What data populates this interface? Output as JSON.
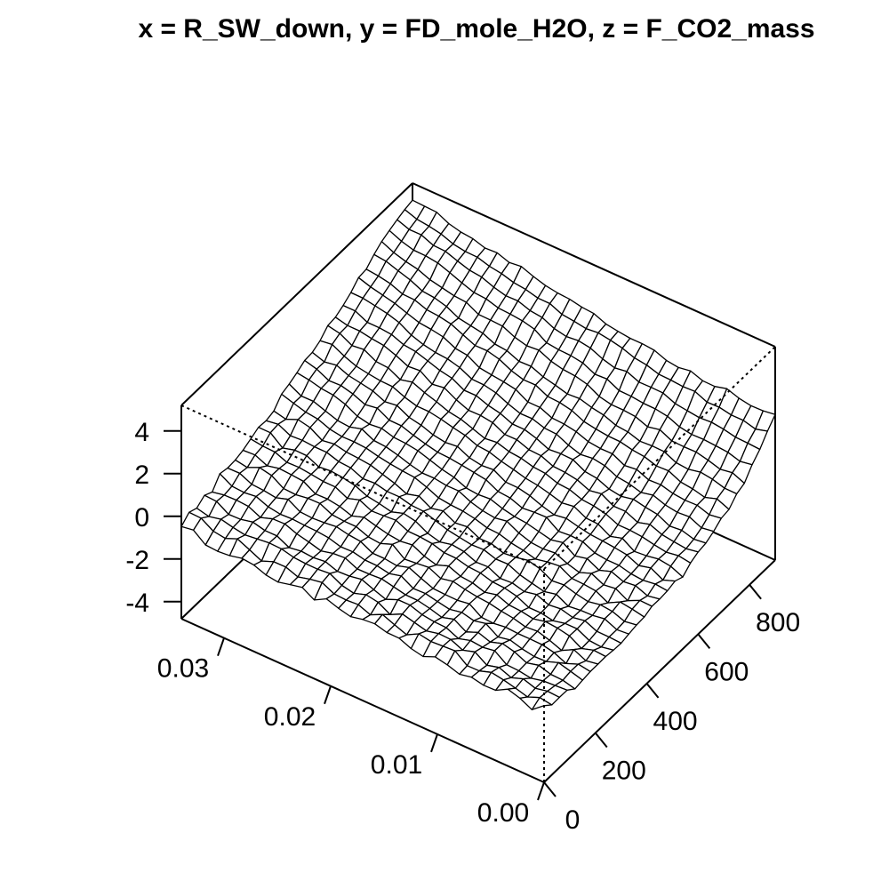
{
  "chart_data": {
    "type": "surface",
    "title": "x = R_SW_down, y = FD_mole_H2O, z = F_CO2_mass",
    "xlabel": "",
    "ylabel": "",
    "zlabel": "",
    "x_ticks": [
      "0.00",
      "0.01",
      "0.02",
      "0.03"
    ],
    "y_ticks": [
      "0",
      "200",
      "400",
      "600",
      "800"
    ],
    "z_ticks": [
      "-4",
      "-2",
      "0",
      "2",
      "4"
    ],
    "xlim": [
      0.0,
      0.034
    ],
    "ylim": [
      0,
      900
    ],
    "zlim": [
      -4.8,
      5.2
    ],
    "grid": false,
    "surface_style": "wireframe, white facets with black edges",
    "x": [
      0.0,
      0.00113,
      0.00227,
      0.0034,
      0.00453,
      0.00567,
      0.0068,
      0.00793,
      0.00907,
      0.0102,
      0.01133,
      0.01247,
      0.0136,
      0.01473,
      0.01587,
      0.017,
      0.01813,
      0.01927,
      0.0204,
      0.02153,
      0.02267,
      0.0238,
      0.02493,
      0.02607,
      0.0272,
      0.02833,
      0.02947,
      0.0306,
      0.03173,
      0.03287,
      0.034
    ],
    "y": [
      0,
      30,
      60,
      90,
      120,
      150,
      180,
      210,
      240,
      270,
      300,
      330,
      360,
      390,
      420,
      450,
      480,
      510,
      540,
      570,
      600,
      630,
      660,
      690,
      720,
      750,
      780,
      810,
      840,
      870,
      900
    ],
    "z": [
      [
        -1.21,
        -1.65,
        -1.37,
        -1.2,
        -1.51,
        -1.53,
        -1.41,
        -1.52,
        -1.34,
        -1.22,
        -1.46,
        -1.34,
        -1.11,
        -1.1,
        -0.95,
        -1.0,
        -1.12,
        -0.99,
        -0.8,
        -1.11,
        -0.78,
        -0.9,
        -1.04,
        -0.96,
        -0.75,
        -0.69,
        -0.82,
        -0.87,
        -0.83,
        -0.39,
        -0.48
      ],
      [
        -1.52,
        -1.43,
        -1.66,
        -1.5,
        -1.37,
        -1.27,
        -1.46,
        -1.47,
        -1.03,
        -1.07,
        -1.1,
        -1.0,
        -1.3,
        -1.09,
        -0.86,
        -1.13,
        -0.91,
        -0.95,
        -0.92,
        -0.64,
        -0.74,
        -0.89,
        -0.68,
        -0.69,
        -0.91,
        -0.64,
        -0.38,
        -0.62,
        -0.53,
        -0.18,
        -0.16
      ],
      [
        -1.51,
        -1.48,
        -1.6,
        -1.41,
        -1.61,
        -1.39,
        -1.54,
        -1.17,
        -1.35,
        -1.1,
        -1.08,
        -1.21,
        -1.07,
        -0.93,
        -1.21,
        -0.89,
        -0.79,
        -0.98,
        -0.86,
        -0.56,
        -0.62,
        -0.61,
        -0.57,
        -0.43,
        -0.41,
        -0.48,
        -0.55,
        -0.45,
        -0.32,
        -0.45,
        -0.31
      ],
      [
        -1.52,
        -1.56,
        -1.6,
        -1.73,
        -1.64,
        -1.61,
        -1.21,
        -1.3,
        -1.24,
        -1.41,
        -1.15,
        -1.13,
        -1.05,
        -0.86,
        -0.86,
        -1.1,
        -0.9,
        -0.68,
        -0.78,
        -0.81,
        -0.61,
        -0.68,
        -0.63,
        -0.72,
        -0.43,
        -0.43,
        -0.29,
        -0.42,
        -0.44,
        -0.09,
        -0.06
      ],
      [
        -1.81,
        -1.66,
        -1.64,
        -1.47,
        -1.61,
        -1.35,
        -1.22,
        -1.4,
        -1.21,
        -1.44,
        -1.1,
        -1.27,
        -1.11,
        -0.99,
        -0.98,
        -0.86,
        -0.74,
        -0.78,
        -0.79,
        -0.53,
        -0.57,
        -0.71,
        -0.55,
        -0.42,
        -0.21,
        -0.23,
        -0.42,
        -0.16,
        -0.12,
        -0.14,
        -0.25
      ],
      [
        -1.75,
        -1.59,
        -1.44,
        -1.64,
        -1.66,
        -1.56,
        -1.4,
        -1.51,
        -1.14,
        -1.26,
        -1.13,
        -1.24,
        -1.13,
        -1.01,
        -1.03,
        -0.7,
        -0.84,
        -0.73,
        -0.72,
        -0.59,
        -0.61,
        -0.45,
        -0.39,
        -0.37,
        -0.33,
        -0.36,
        -0.27,
        -0.04,
        -0.11,
        -0.07,
        0.26
      ],
      [
        -1.69,
        -1.6,
        -1.83,
        -1.57,
        -1.45,
        -1.44,
        -1.44,
        -1.4,
        -1.48,
        -1.45,
        -1.07,
        -1.16,
        -1.15,
        -1.12,
        -0.9,
        -0.65,
        -0.82,
        -0.75,
        -0.75,
        -0.45,
        -0.39,
        -0.27,
        -0.34,
        -0.38,
        -0.34,
        -0.01,
        -0.19,
        -0.11,
        -0.07,
        0.19,
        0.18
      ],
      [
        -1.69,
        -1.79,
        -1.52,
        -1.82,
        -1.6,
        -1.43,
        -1.48,
        -1.33,
        -1.25,
        -1.14,
        -1.09,
        -1.0,
        -0.88,
        -1.0,
        -0.74,
        -0.8,
        -0.86,
        -0.42,
        -0.64,
        -0.58,
        -0.36,
        -0.36,
        -0.31,
        -0.04,
        -0.05,
        -0.14,
        -0.11,
        0.25,
        0.37,
        0.11,
        0.21
      ],
      [
        -1.68,
        -1.64,
        -1.82,
        -1.48,
        -1.37,
        -1.32,
        -1.45,
        -1.35,
        -1.31,
        -1.09,
        -1.23,
        -1.05,
        -0.99,
        -0.76,
        -0.97,
        -0.81,
        -0.54,
        -0.62,
        -0.55,
        -0.42,
        -0.27,
        -0.46,
        -0.27,
        -0.18,
        -0.2,
        0.14,
        0.19,
        0.23,
        0.1,
        0.35,
        0.32
      ],
      [
        -1.73,
        -1.84,
        -1.79,
        -1.5,
        -1.5,
        -1.63,
        -1.52,
        -1.52,
        -1.25,
        -1.12,
        -1.09,
        -0.93,
        -0.89,
        -0.75,
        -0.74,
        -0.57,
        -0.51,
        -0.5,
        -0.24,
        -0.29,
        -0.32,
        -0.06,
        -0.24,
        0.04,
        0.04,
        0.12,
        0.19,
        0.17,
        0.4,
        0.42,
        0.5
      ],
      [
        -1.75,
        -1.72,
        -1.71,
        -1.47,
        -1.57,
        -1.42,
        -1.49,
        -1.26,
        -1.38,
        -1.23,
        -1.27,
        -0.99,
        -1.02,
        -0.78,
        -0.71,
        -0.84,
        -0.69,
        -0.38,
        -0.27,
        -0.45,
        -0.32,
        -0.23,
        0.01,
        0.12,
        0.18,
        0.12,
        0.39,
        0.4,
        0.24,
        0.7,
        0.7
      ],
      [
        -1.67,
        -1.72,
        -1.47,
        -1.56,
        -1.58,
        -1.65,
        -1.34,
        -1.47,
        -1.34,
        -1.2,
        -0.95,
        -0.97,
        -0.78,
        -0.81,
        -0.72,
        -0.62,
        -0.44,
        -0.26,
        -0.23,
        -0.09,
        -0.1,
        0.03,
        -0.01,
        0.24,
        0.28,
        0.46,
        0.46,
        0.51,
        0.47,
        0.75,
        0.66
      ],
      [
        -1.59,
        -1.68,
        -1.47,
        -1.41,
        -1.52,
        -1.41,
        -1.25,
        -1.31,
        -1.0,
        -0.86,
        -0.98,
        -1.04,
        -0.85,
        -0.86,
        -0.57,
        -0.64,
        -0.34,
        -0.47,
        -0.15,
        -0.31,
        -0.07,
        0.1,
        0.28,
        0.34,
        0.38,
        0.5,
        0.41,
        0.76,
        0.88,
        0.64,
        0.77
      ],
      [
        -1.57,
        -1.45,
        -1.37,
        -1.67,
        -1.37,
        -1.31,
        -1.29,
        -0.97,
        -1.03,
        -1.15,
        -1.0,
        -0.91,
        -0.74,
        -0.71,
        -0.54,
        -0.44,
        -0.4,
        -0.33,
        -0.08,
        0.12,
        0.17,
        0.24,
        0.34,
        0.47,
        0.51,
        0.5,
        0.59,
        0.81,
        0.88,
        1.04,
        1.21
      ],
      [
        -1.41,
        -1.39,
        -1.66,
        -1.35,
        -1.43,
        -1.15,
        -1.36,
        -1.2,
        -0.96,
        -1.02,
        -0.98,
        -0.79,
        -0.49,
        -0.59,
        -0.51,
        -0.35,
        -0.09,
        -0.1,
        -0.01,
        -0.02,
        0.12,
        0.3,
        0.44,
        0.48,
        0.77,
        0.6,
        0.65,
        0.84,
        1.04,
        1.03,
        1.34
      ],
      [
        -1.42,
        -1.52,
        -1.3,
        -1.37,
        -1.15,
        -1.35,
        -1.06,
        -1.19,
        -0.82,
        -0.94,
        -0.81,
        -0.68,
        -0.62,
        -0.5,
        -0.31,
        -0.36,
        -0.3,
        -0.06,
        0.06,
        0.24,
        0.42,
        0.51,
        0.54,
        0.7,
        0.64,
        0.76,
        1.06,
        1.24,
        1.3,
        1.44,
        1.52
      ],
      [
        -1.38,
        -1.32,
        -1.4,
        -1.35,
        -1.21,
        -1.21,
        -1.14,
        -0.87,
        -0.84,
        -0.89,
        -0.49,
        -0.51,
        -0.57,
        -0.35,
        -0.3,
        -0.01,
        0.08,
        0.16,
        0.23,
        0.26,
        0.39,
        0.54,
        0.73,
        0.74,
        1.05,
        0.96,
        1.2,
        1.34,
        1.32,
        1.6,
        1.75
      ],
      [
        -1.27,
        -1.48,
        -1.17,
        -1.31,
        -1.06,
        -0.98,
        -0.92,
        -0.88,
        -0.77,
        -0.63,
        -0.72,
        -0.56,
        -0.34,
        -0.22,
        -0.21,
        0.11,
        0.06,
        0.16,
        0.44,
        0.37,
        0.47,
        0.67,
        0.78,
        1.08,
        1.0,
        1.25,
        1.36,
        1.46,
        1.69,
        1.59,
        1.78
      ],
      [
        -1.43,
        -1.18,
        -1.1,
        -1.2,
        -1.25,
        -0.89,
        -1.06,
        -0.74,
        -0.71,
        -0.42,
        -0.51,
        -0.34,
        -0.2,
        -0.12,
        0.03,
        0.16,
        0.34,
        0.39,
        0.61,
        0.72,
        0.86,
        0.96,
        0.96,
        1.12,
        1.36,
        1.38,
        1.45,
        1.55,
        1.77,
        2.06,
        1.98
      ],
      [
        -1.12,
        -1.03,
        -1.12,
        -1.03,
        -0.91,
        -0.86,
        -0.86,
        -0.61,
        -0.49,
        -0.44,
        -0.23,
        -0.19,
        0.01,
        0.06,
        0.21,
        0.27,
        0.44,
        0.37,
        0.57,
        0.77,
        0.86,
        1.07,
        1.25,
        1.48,
        1.34,
        1.64,
        1.68,
        1.98,
        1.92,
        2.23,
        2.34
      ],
      [
        -0.95,
        -1.05,
        -0.98,
        -0.9,
        -0.68,
        -0.84,
        -0.58,
        -0.59,
        -0.27,
        -0.37,
        -0.13,
        -0.03,
        0.0,
        0.24,
        0.27,
        0.48,
        0.47,
        0.77,
        0.85,
        0.84,
        1.07,
        1.38,
        1.29,
        1.67,
        1.62,
        1.87,
        2.08,
        2.15,
        2.25,
        2.25,
        2.39
      ],
      [
        -0.88,
        -0.95,
        -0.79,
        -0.85,
        -0.56,
        -0.48,
        -0.36,
        -0.48,
        -0.39,
        -0.15,
        -0.08,
        0.22,
        0.24,
        0.19,
        0.44,
        0.61,
        0.61,
        0.85,
        0.97,
        1.18,
        1.17,
        1.48,
        1.59,
        1.78,
        1.96,
        2.03,
        2.25,
        2.31,
        2.31,
        2.59,
        2.59
      ],
      [
        -0.68,
        -0.77,
        -0.51,
        -0.55,
        -0.46,
        -0.26,
        -0.39,
        -0.23,
        -0.16,
        0.1,
        0.19,
        0.11,
        0.29,
        0.56,
        0.59,
        0.77,
        0.76,
        0.96,
        1.21,
        1.33,
        1.35,
        1.63,
        1.78,
        1.83,
        1.94,
        2.13,
        2.46,
        2.63,
        2.74,
        2.84,
        2.85
      ],
      [
        -0.41,
        -0.5,
        -0.31,
        -0.33,
        -0.27,
        -0.12,
        -0.15,
        0.09,
        0.02,
        0.31,
        0.3,
        0.37,
        0.58,
        0.68,
        0.71,
        0.95,
        0.95,
        1.28,
        1.38,
        1.45,
        1.53,
        1.86,
        1.93,
        2.21,
        2.31,
        2.37,
        2.56,
        2.76,
        2.89,
        3.02,
        3.2
      ],
      [
        -0.34,
        -0.1,
        -0.29,
        -0.15,
        -0.08,
        0.19,
        0.16,
        0.34,
        0.4,
        0.53,
        0.54,
        0.61,
        0.71,
        0.97,
        1.09,
        1.12,
        1.4,
        1.39,
        1.56,
        1.84,
        1.98,
        1.97,
        2.22,
        2.47,
        2.58,
        2.63,
        2.83,
        2.85,
        3.08,
        3.19,
        3.25
      ],
      [
        0.04,
        0.05,
        0.21,
        0.29,
        0.17,
        0.22,
        0.48,
        0.5,
        0.46,
        0.64,
        0.7,
        0.92,
        1.02,
        1.18,
        1.14,
        1.3,
        1.43,
        1.67,
        1.65,
        1.89,
        1.95,
        2.2,
        2.3,
        2.4,
        2.68,
        2.84,
        2.9,
        3.16,
        3.34,
        3.53,
        3.59
      ],
      [
        0.19,
        0.43,
        0.33,
        0.5,
        0.63,
        0.62,
        0.64,
        0.91,
        0.79,
        1.01,
        1.06,
        1.06,
        1.19,
        1.5,
        1.64,
        1.69,
        1.82,
        2.08,
        2.03,
        2.18,
        2.44,
        2.47,
        2.48,
        2.79,
        2.84,
        2.96,
        3.08,
        3.31,
        3.42,
        3.59,
        3.85
      ],
      [
        0.71,
        0.61,
        0.78,
        0.83,
        0.87,
        0.85,
        0.95,
        1.19,
        1.28,
        1.29,
        1.36,
        1.37,
        1.66,
        1.63,
        1.9,
        1.99,
        2.01,
        2.08,
        2.46,
        2.6,
        2.66,
        2.69,
        2.86,
        2.9,
        3.1,
        3.32,
        3.52,
        3.6,
        3.61,
        3.77,
        4.02
      ],
      [
        1.08,
        1.12,
        1.14,
        1.26,
        1.33,
        1.29,
        1.36,
        1.44,
        1.68,
        1.69,
        1.68,
        1.92,
        1.83,
        2.0,
        2.25,
        2.34,
        2.28,
        2.4,
        2.66,
        2.73,
        2.93,
        2.91,
        3.06,
        3.28,
        3.34,
        3.52,
        3.72,
        3.74,
        3.98,
        3.98,
        4.18
      ],
      [
        1.59,
        1.43,
        1.58,
        1.58,
        1.69,
        1.67,
        1.92,
        1.89,
        1.94,
        1.96,
        2.13,
        2.21,
        2.41,
        2.53,
        2.62,
        2.56,
        2.65,
        2.72,
        2.97,
        2.97,
        3.12,
        3.19,
        3.35,
        3.44,
        3.61,
        3.62,
        3.72,
        3.93,
        4.04,
        4.11,
        4.31
      ],
      [
        2.02,
        1.94,
        1.92,
        2.02,
        2.21,
        2.06,
        2.07,
        2.28,
        2.18,
        2.26,
        2.48,
        2.53,
        2.53,
        2.6,
        2.69,
        2.92,
        2.97,
        3.08,
        3.12,
        3.21,
        3.38,
        3.59,
        3.53,
        3.72,
        3.69,
        3.87,
        3.93,
        4.07,
        4.35,
        4.37,
        4.4
      ]
    ]
  }
}
